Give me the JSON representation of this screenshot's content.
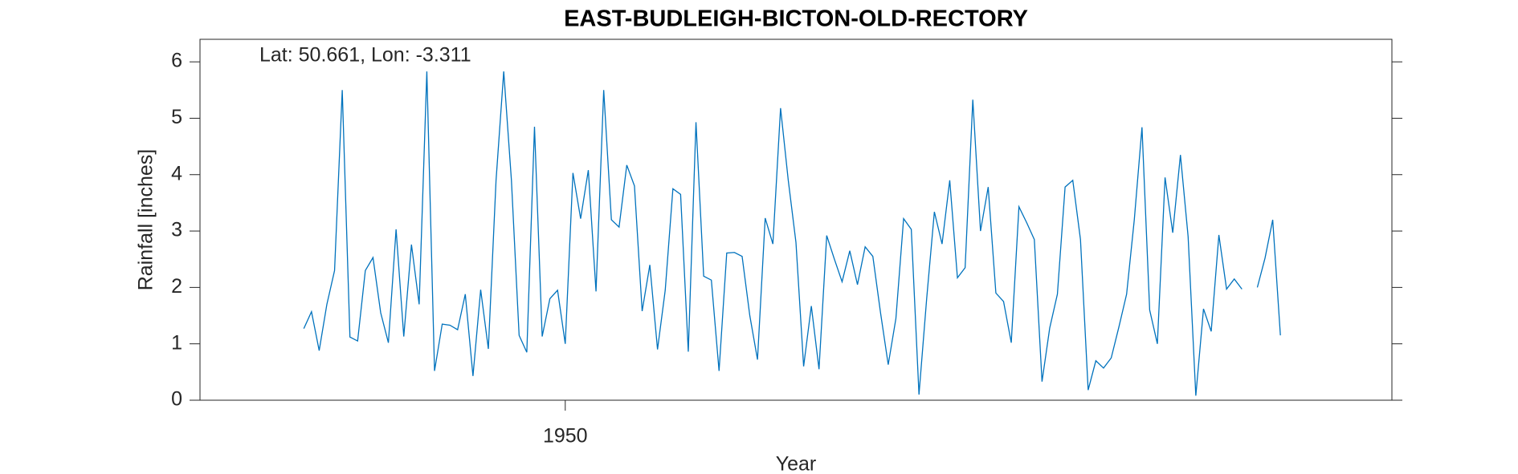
{
  "chart_data": {
    "type": "line",
    "title": "EAST-BUDLEIGH-BICTON-OLD-RECTORY",
    "annotation": "Lat: 50.661, Lon: -3.311",
    "xlabel": "Year",
    "ylabel": "Rainfall [inches]",
    "xlim": [
      1931,
      1993
    ],
    "xticks": [
      1950
    ],
    "ylim": [
      0,
      6.4
    ],
    "yticks": [
      0,
      1,
      2,
      3,
      4,
      5,
      6
    ],
    "x": [
      1936.4,
      1936.8,
      1937.2,
      1937.6,
      1938,
      1938.4,
      1938.8,
      1939.2,
      1939.6,
      1940,
      1940.4,
      1940.8,
      1941.2,
      1941.6,
      1942,
      1942.4,
      1942.8,
      1943.2,
      1943.6,
      1944,
      1944.4,
      1944.8,
      1945.2,
      1945.6,
      1946,
      1946.4,
      1946.8,
      1947.2,
      1947.6,
      1948,
      1948.4,
      1948.8,
      1949.2,
      1949.6,
      1950,
      1950.4,
      1950.8,
      1951.2,
      1951.6,
      1952,
      1952.4,
      1952.8,
      1953.2,
      1953.6,
      1954,
      1954.4,
      1954.8,
      1955.2,
      1955.6,
      1956,
      1956.4,
      1956.8,
      1957.2,
      1957.6,
      1958,
      1958.4,
      1958.8,
      1959.2,
      1959.6,
      1960,
      1960.4,
      1960.8,
      1961.2,
      1961.6,
      1962,
      1962.4,
      1962.8,
      1963.2,
      1963.6,
      1964,
      1964.4,
      1964.8,
      1965.2,
      1965.6,
      1966,
      1966.4,
      1966.8,
      1967.2,
      1967.6,
      1968,
      1968.4,
      1968.8,
      1969.2,
      1969.6,
      1970,
      1970.4,
      1970.8,
      1971.2,
      1971.6,
      1972,
      1972.4,
      1972.8,
      1973.2,
      1973.6,
      1974,
      1974.4,
      1974.8,
      1975.2,
      1975.6,
      1976,
      1976.4,
      1976.8,
      1977.2,
      1977.6,
      1978,
      1978.4,
      1978.8,
      1979.2,
      1979.6,
      1980,
      1980.4,
      1980.8,
      1981.2,
      1981.6,
      1982,
      1982.4,
      1982.8,
      1983.2,
      1983.6,
      1984,
      1984.4,
      1984.8,
      1985.2,
      1985.6,
      1986,
      1986.4,
      1986.8,
      1987.2
    ],
    "series": [
      {
        "color": "#0072bd",
        "values": [
          1.27,
          1.57,
          0.88,
          1.7,
          2.3,
          5.5,
          1.12,
          1.05,
          2.3,
          2.53,
          1.55,
          1.02,
          3.03,
          1.13,
          2.76,
          1.7,
          5.83,
          0.52,
          1.35,
          1.33,
          1.25,
          1.88,
          0.43,
          1.96,
          0.91,
          3.9,
          5.83,
          3.9,
          1.15,
          0.85,
          4.85,
          1.13,
          1.8,
          1.95,
          1.0,
          4.03,
          3.22,
          4.08,
          1.93,
          5.5,
          3.2,
          3.07,
          4.17,
          3.8,
          1.58,
          2.4,
          0.9,
          1.95,
          3.75,
          3.65,
          0.86,
          4.93,
          2.2,
          2.13,
          0.52,
          2.61,
          2.62,
          2.55,
          1.5,
          0.72,
          3.23,
          2.77,
          5.18,
          3.9,
          2.8,
          0.6,
          1.67,
          0.55,
          2.92,
          2.5,
          2.1,
          2.65,
          2.05,
          2.72,
          2.55,
          1.55,
          0.63,
          1.45,
          3.22,
          3.03,
          0.1,
          1.8,
          3.34,
          2.77,
          3.9,
          2.17,
          2.35,
          5.33,
          3.0,
          3.78,
          1.9,
          1.75,
          1.02,
          3.43,
          3.15,
          2.85,
          0.33,
          1.28,
          1.88,
          3.78,
          3.9,
          2.85,
          0.18,
          0.7,
          0.57,
          0.75,
          1.3,
          1.88,
          3.2,
          4.84,
          1.6,
          1.0,
          3.95,
          2.97,
          4.35,
          2.9,
          0.08,
          1.62,
          1.22,
          2.93,
          1.97,
          2.15,
          1.97,
          null,
          2.0,
          2.52,
          3.2,
          1.15
        ]
      }
    ]
  }
}
